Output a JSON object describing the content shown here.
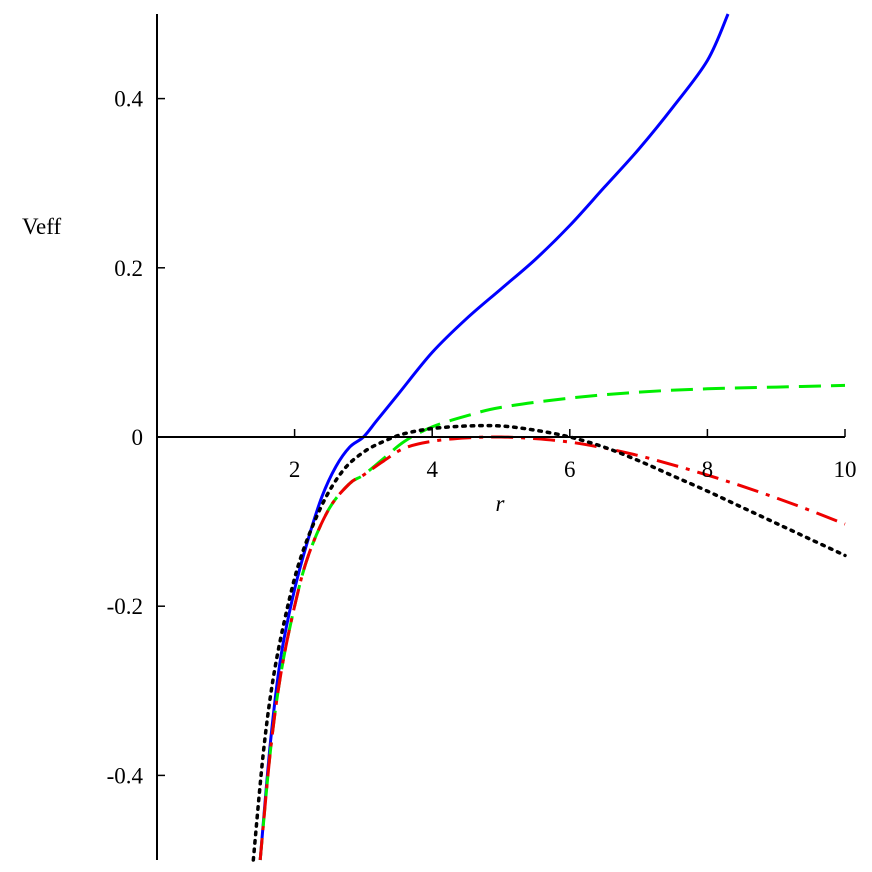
{
  "chart_data": {
    "type": "line",
    "title": "",
    "xlabel": "r",
    "ylabel": "Veff",
    "xlim": [
      0,
      10
    ],
    "ylim": [
      -0.5,
      0.5
    ],
    "grid": false,
    "legend": "none",
    "x_ticks": [
      {
        "value": 2,
        "label": "2"
      },
      {
        "value": 4,
        "label": "4"
      },
      {
        "value": 6,
        "label": "6"
      },
      {
        "value": 8,
        "label": "8"
      },
      {
        "value": 10,
        "label": "10"
      }
    ],
    "y_ticks": [
      {
        "value": 0.4,
        "label": "0.4"
      },
      {
        "value": 0.2,
        "label": "0.2"
      },
      {
        "value": 0,
        "label": "0"
      },
      {
        "value": -0.2,
        "label": "-0.2"
      },
      {
        "value": -0.4,
        "label": "-0.4"
      }
    ],
    "series": [
      {
        "color": "#0000ff",
        "style": "solid",
        "points": [
          [
            1.5,
            -0.5
          ],
          [
            1.65,
            -0.36
          ],
          [
            1.8,
            -0.26
          ],
          [
            2.0,
            -0.18
          ],
          [
            2.2,
            -0.12
          ],
          [
            2.4,
            -0.07
          ],
          [
            2.6,
            -0.035
          ],
          [
            2.8,
            -0.012
          ],
          [
            3.0,
            0.0
          ],
          [
            3.2,
            0.02
          ],
          [
            3.5,
            0.05
          ],
          [
            4.0,
            0.1
          ],
          [
            4.5,
            0.14
          ],
          [
            5.0,
            0.175
          ],
          [
            5.5,
            0.21
          ],
          [
            6.0,
            0.25
          ],
          [
            6.5,
            0.295
          ],
          [
            7.0,
            0.34
          ],
          [
            7.5,
            0.39
          ],
          [
            8.0,
            0.445
          ],
          [
            8.3,
            0.5
          ]
        ]
      },
      {
        "color": "#00ee00",
        "style": "dashed",
        "points": [
          [
            1.5,
            -0.5
          ],
          [
            1.65,
            -0.37
          ],
          [
            1.8,
            -0.28
          ],
          [
            2.0,
            -0.2
          ],
          [
            2.2,
            -0.14
          ],
          [
            2.5,
            -0.085
          ],
          [
            2.8,
            -0.055
          ],
          [
            3.0,
            -0.045
          ],
          [
            3.3,
            -0.025
          ],
          [
            3.6,
            -0.005
          ],
          [
            4.0,
            0.012
          ],
          [
            4.5,
            0.025
          ],
          [
            5.0,
            0.035
          ],
          [
            6.0,
            0.046
          ],
          [
            7.0,
            0.053
          ],
          [
            8.0,
            0.057
          ],
          [
            9.0,
            0.059
          ],
          [
            10.0,
            0.061
          ]
        ]
      },
      {
        "color": "#ee0000",
        "style": "dashdot",
        "points": [
          [
            1.5,
            -0.5
          ],
          [
            1.65,
            -0.37
          ],
          [
            1.8,
            -0.28
          ],
          [
            2.0,
            -0.2
          ],
          [
            2.2,
            -0.14
          ],
          [
            2.5,
            -0.085
          ],
          [
            2.8,
            -0.055
          ],
          [
            3.0,
            -0.045
          ],
          [
            3.3,
            -0.028
          ],
          [
            3.6,
            -0.013
          ],
          [
            4.0,
            -0.005
          ],
          [
            4.5,
            -0.001
          ],
          [
            5.0,
            0.0
          ],
          [
            5.5,
            -0.002
          ],
          [
            6.0,
            -0.006
          ],
          [
            6.5,
            -0.013
          ],
          [
            7.0,
            -0.022
          ],
          [
            7.5,
            -0.033
          ],
          [
            8.0,
            -0.045
          ],
          [
            8.5,
            -0.058
          ],
          [
            9.0,
            -0.072
          ],
          [
            9.5,
            -0.087
          ],
          [
            10.0,
            -0.103
          ]
        ]
      },
      {
        "color": "#000000",
        "style": "dotted",
        "points": [
          [
            1.4,
            -0.5
          ],
          [
            1.55,
            -0.37
          ],
          [
            1.7,
            -0.28
          ],
          [
            1.9,
            -0.2
          ],
          [
            2.1,
            -0.14
          ],
          [
            2.4,
            -0.08
          ],
          [
            2.7,
            -0.04
          ],
          [
            3.0,
            -0.018
          ],
          [
            3.3,
            -0.005
          ],
          [
            3.6,
            0.004
          ],
          [
            4.0,
            0.01
          ],
          [
            4.5,
            0.013
          ],
          [
            5.0,
            0.013
          ],
          [
            5.5,
            0.008
          ],
          [
            6.0,
            0.0
          ],
          [
            6.5,
            -0.012
          ],
          [
            7.0,
            -0.028
          ],
          [
            7.5,
            -0.046
          ],
          [
            8.0,
            -0.064
          ],
          [
            8.5,
            -0.083
          ],
          [
            9.0,
            -0.102
          ],
          [
            9.5,
            -0.121
          ],
          [
            10.0,
            -0.14
          ]
        ]
      }
    ]
  }
}
